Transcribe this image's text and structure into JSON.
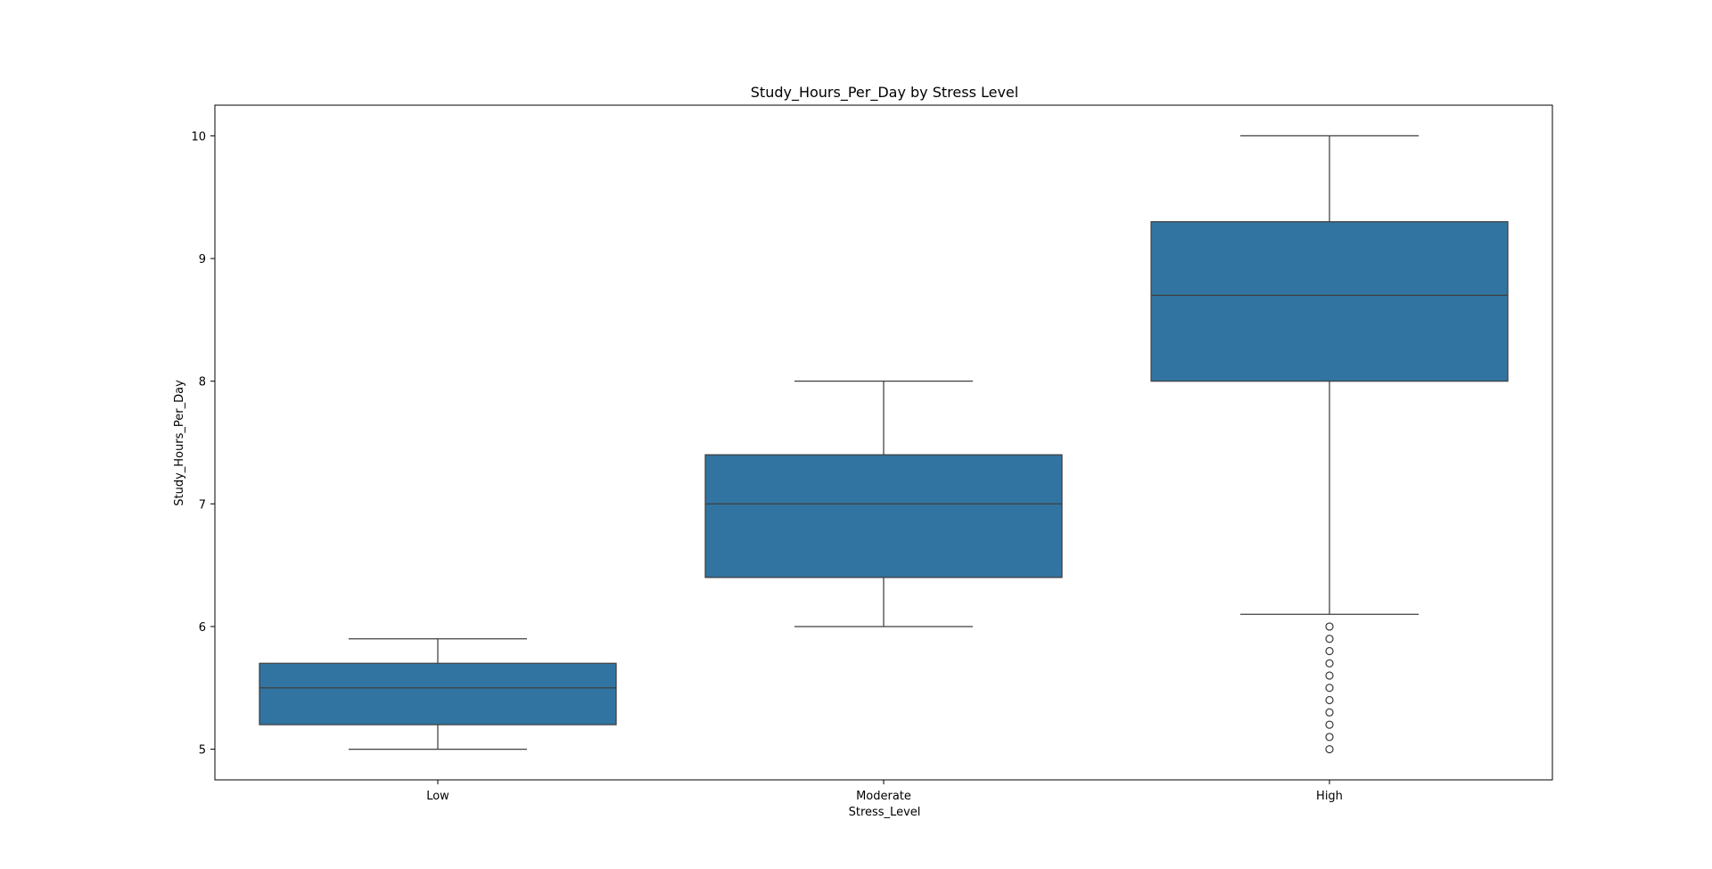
{
  "chart_data": {
    "type": "box",
    "title": "Study_Hours_Per_Day by Stress Level",
    "xlabel": "Stress_Level",
    "ylabel": "Study_Hours_Per_Day",
    "categories": [
      "Low",
      "Moderate",
      "High"
    ],
    "ylim": [
      4.75,
      10.25
    ],
    "yticks": [
      5,
      6,
      7,
      8,
      9,
      10
    ],
    "grid": false,
    "box_color": "#3274a1",
    "line_color": "#3f3f3f",
    "boxes": [
      {
        "category": "Low",
        "whisker_low": 5.0,
        "q1": 5.2,
        "median": 5.5,
        "q3": 5.7,
        "whisker_high": 5.9,
        "outliers": []
      },
      {
        "category": "Moderate",
        "whisker_low": 6.0,
        "q1": 6.4,
        "median": 7.0,
        "q3": 7.4,
        "whisker_high": 8.0,
        "outliers": []
      },
      {
        "category": "High",
        "whisker_low": 6.1,
        "q1": 8.0,
        "median": 8.7,
        "q3": 9.3,
        "whisker_high": 10.0,
        "outliers": [
          5.0,
          5.1,
          5.2,
          5.3,
          5.4,
          5.5,
          5.6,
          5.7,
          5.8,
          5.9,
          6.0
        ]
      }
    ]
  }
}
